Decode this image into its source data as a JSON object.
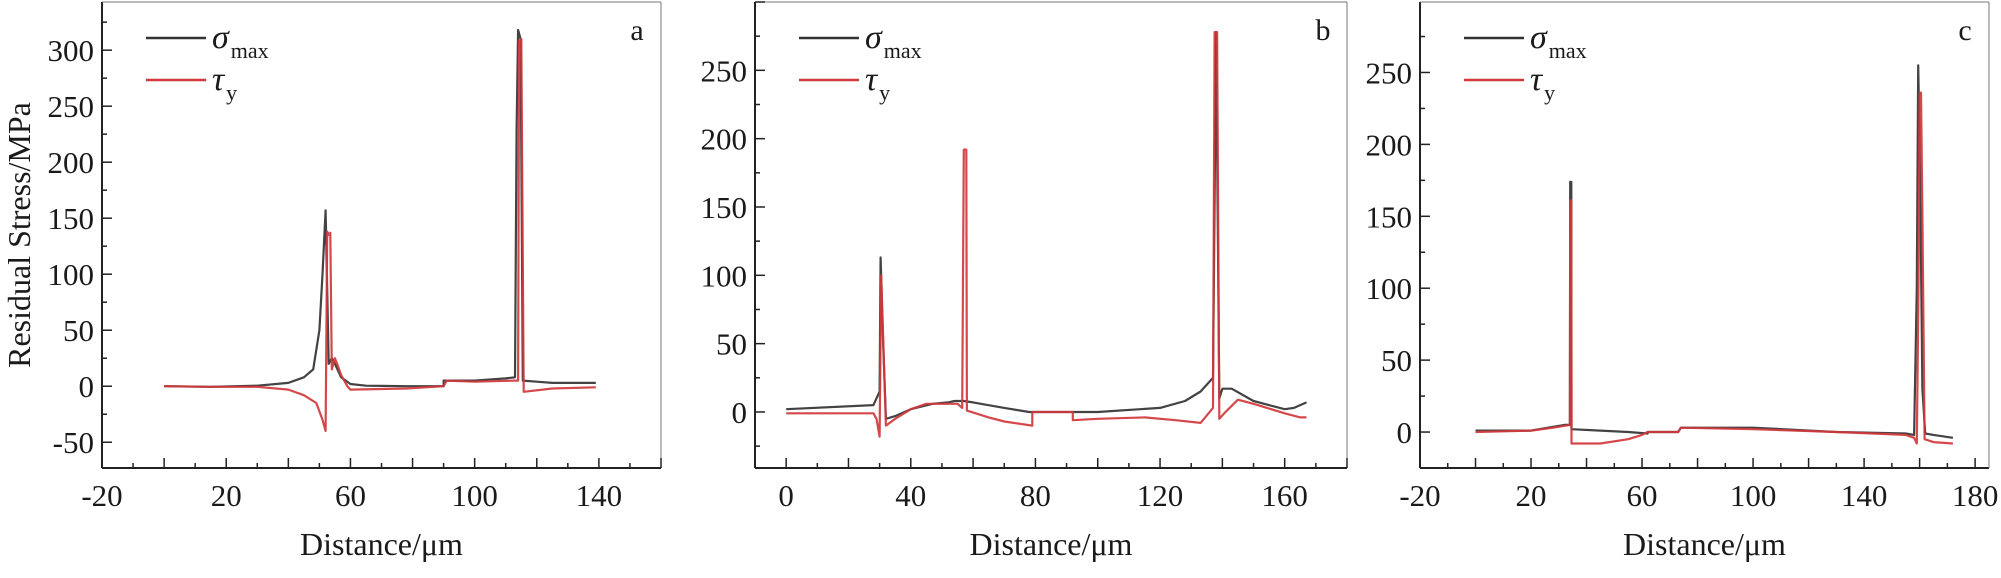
{
  "chart_data": [
    {
      "type": "line",
      "panel_label": "a",
      "xlabel": "Distance/μm",
      "ylabel": "Residual Stress/MPa",
      "xlim": [
        -20,
        160
      ],
      "ylim": [
        -73,
        343
      ],
      "xticks": [
        -20,
        20,
        60,
        100,
        140
      ],
      "yticks": [
        -50,
        0,
        50,
        100,
        150,
        200,
        250,
        300
      ],
      "legend_position": "top-left",
      "series": [
        {
          "name": "σ",
          "subscript": "max",
          "color": "#333333",
          "points": [
            [
              0,
              0
            ],
            [
              15,
              -0.5
            ],
            [
              30,
              0.5
            ],
            [
              40,
              3
            ],
            [
              45,
              8
            ],
            [
              48,
              15
            ],
            [
              50,
              50
            ],
            [
              51,
              100
            ],
            [
              52,
              157
            ],
            [
              53,
              20
            ],
            [
              54,
              25
            ],
            [
              55,
              20
            ],
            [
              57,
              8
            ],
            [
              60,
              2
            ],
            [
              65,
              0.5
            ],
            [
              78,
              0
            ],
            [
              90,
              0
            ],
            [
              90,
              5
            ],
            [
              91,
              5
            ],
            [
              100,
              5
            ],
            [
              110,
              7
            ],
            [
              113,
              8
            ],
            [
              113.5,
              230
            ],
            [
              114,
              318
            ],
            [
              114.8,
              310
            ],
            [
              115.5,
              5
            ],
            [
              120,
              4
            ],
            [
              125,
              3
            ],
            [
              139,
              3
            ]
          ]
        },
        {
          "name": "τ",
          "subscript": "y",
          "color": "#d0383c",
          "points": [
            [
              0,
              0
            ],
            [
              15,
              -0.5
            ],
            [
              30,
              -0.5
            ],
            [
              40,
              -3
            ],
            [
              45,
              -8
            ],
            [
              49,
              -15
            ],
            [
              51,
              -30
            ],
            [
              52,
              -40
            ],
            [
              52.5,
              138
            ],
            [
              53,
              135
            ],
            [
              53.5,
              137
            ],
            [
              54,
              15
            ],
            [
              55,
              25
            ],
            [
              56,
              18
            ],
            [
              57,
              10
            ],
            [
              59,
              0
            ],
            [
              60,
              -3
            ],
            [
              78,
              -2
            ],
            [
              90,
              0
            ],
            [
              91,
              5
            ],
            [
              100,
              4
            ],
            [
              113,
              5
            ],
            [
              114,
              5
            ],
            [
              114.3,
              308
            ],
            [
              115,
              310
            ],
            [
              115.8,
              -5
            ],
            [
              125,
              -2
            ],
            [
              139,
              -1
            ]
          ]
        }
      ]
    },
    {
      "type": "line",
      "panel_label": "b",
      "xlabel": "Distance/μm",
      "ylabel": "",
      "xlim": [
        -10,
        180
      ],
      "ylim": [
        -41,
        300
      ],
      "xticks": [
        0,
        40,
        80,
        120,
        160
      ],
      "yticks": [
        0,
        50,
        100,
        150,
        200,
        250
      ],
      "legend_position": "top-left",
      "series": [
        {
          "name": "σ",
          "subscript": "max",
          "color": "#333333",
          "points": [
            [
              0,
              2
            ],
            [
              28,
              5
            ],
            [
              29,
              10
            ],
            [
              30,
              15
            ],
            [
              30.3,
              113
            ],
            [
              31,
              60
            ],
            [
              32,
              -5
            ],
            [
              35,
              -3
            ],
            [
              40,
              2
            ],
            [
              47,
              6
            ],
            [
              52,
              7
            ],
            [
              54,
              8
            ],
            [
              57,
              8
            ],
            [
              60,
              7
            ],
            [
              70,
              3
            ],
            [
              78,
              0
            ],
            [
              90,
              0
            ],
            [
              100,
              0
            ],
            [
              120,
              3
            ],
            [
              128,
              8
            ],
            [
              133,
              15
            ],
            [
              137,
              25
            ],
            [
              138,
              278
            ],
            [
              139,
              10
            ],
            [
              140,
              17
            ],
            [
              143,
              17
            ],
            [
              150,
              8
            ],
            [
              160,
              2
            ],
            [
              163,
              3
            ],
            [
              167,
              7
            ]
          ]
        },
        {
          "name": "τ",
          "subscript": "y",
          "color": "#d0383c",
          "points": [
            [
              0,
              -1
            ],
            [
              28,
              -1
            ],
            [
              29,
              -5
            ],
            [
              30,
              -18
            ],
            [
              30.5,
              100
            ],
            [
              32,
              -10
            ],
            [
              35,
              -5
            ],
            [
              40,
              2
            ],
            [
              45,
              6
            ],
            [
              50,
              6
            ],
            [
              55,
              6
            ],
            [
              56.5,
              3
            ],
            [
              57,
              192
            ],
            [
              57.8,
              192
            ],
            [
              58,
              1
            ],
            [
              65,
              -4
            ],
            [
              70,
              -7
            ],
            [
              79,
              -10
            ],
            [
              79,
              0
            ],
            [
              92,
              0
            ],
            [
              92,
              -6
            ],
            [
              100,
              -5
            ],
            [
              115,
              -4
            ],
            [
              125,
              -6
            ],
            [
              133,
              -8
            ],
            [
              137,
              3
            ],
            [
              137.5,
              278
            ],
            [
              138.3,
              278
            ],
            [
              139,
              -5
            ],
            [
              141,
              0
            ],
            [
              145,
              9
            ],
            [
              150,
              6
            ],
            [
              160,
              -1
            ],
            [
              165,
              -4
            ],
            [
              167,
              -4
            ]
          ]
        }
      ]
    },
    {
      "type": "line",
      "panel_label": "c",
      "xlabel": "Distance/μm",
      "ylabel": "",
      "xlim": [
        -20,
        185
      ],
      "ylim": [
        -25,
        299
      ],
      "xticks": [
        -20,
        20,
        60,
        100,
        140,
        180
      ],
      "yticks": [
        0,
        50,
        100,
        150,
        200,
        250
      ],
      "legend_position": "top-left",
      "series": [
        {
          "name": "σ",
          "subscript": "max",
          "color": "#333333",
          "points": [
            [
              0,
              1
            ],
            [
              20,
              1
            ],
            [
              32,
              5
            ],
            [
              34,
              5
            ],
            [
              34.1,
              174
            ],
            [
              34.5,
              174
            ],
            [
              34.6,
              2
            ],
            [
              45,
              1
            ],
            [
              55,
              0
            ],
            [
              62,
              -1
            ],
            [
              62,
              0
            ],
            [
              73,
              0
            ],
            [
              74,
              3
            ],
            [
              100,
              3
            ],
            [
              130,
              0
            ],
            [
              155,
              -1
            ],
            [
              158,
              -2
            ],
            [
              159,
              100
            ],
            [
              159.5,
              255
            ],
            [
              160,
              200
            ],
            [
              160.5,
              120
            ],
            [
              161,
              30
            ],
            [
              162,
              -1
            ],
            [
              165,
              -2
            ],
            [
              172,
              -4
            ]
          ]
        },
        {
          "name": "τ",
          "subscript": "y",
          "color": "#d0383c",
          "points": [
            [
              0,
              0
            ],
            [
              20,
              1
            ],
            [
              28,
              3
            ],
            [
              34,
              5
            ],
            [
              34.1,
              161
            ],
            [
              34.5,
              161
            ],
            [
              34.6,
              -8
            ],
            [
              45,
              -8
            ],
            [
              55,
              -5
            ],
            [
              60,
              -2
            ],
            [
              62,
              0
            ],
            [
              73,
              0
            ],
            [
              74,
              3
            ],
            [
              100,
              2
            ],
            [
              130,
              0
            ],
            [
              155,
              -2
            ],
            [
              158,
              -4
            ],
            [
              159,
              -8
            ],
            [
              159.6,
              100
            ],
            [
              160,
              235
            ],
            [
              160.5,
              236
            ],
            [
              161,
              150
            ],
            [
              161.8,
              -5
            ],
            [
              165,
              -7
            ],
            [
              172,
              -8
            ]
          ]
        }
      ]
    }
  ]
}
